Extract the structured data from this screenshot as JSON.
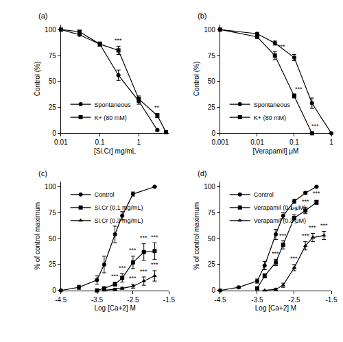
{
  "chart_data": [
    {
      "type": "scatter",
      "title": "(a)",
      "x_label": "[Si.Cr] mg/mL",
      "y_label": "Control (%)",
      "log": "x",
      "grid": false,
      "legend": "lower left",
      "xlim": [
        0.01,
        6
      ],
      "xticks": [
        0.01,
        0.1,
        1
      ],
      "ylim": [
        0,
        105
      ],
      "yticks": [
        0,
        25,
        50,
        75,
        100
      ],
      "series": [
        {
          "name": "Spontaneous",
          "color": "#000000",
          "marker": "circle",
          "line_style": "solid",
          "x": [
            0.01,
            0.03,
            0.1,
            0.3,
            1,
            3
          ],
          "values": [
            100,
            95,
            86,
            56,
            31,
            3
          ],
          "errors": [
            0,
            1,
            2,
            5,
            3,
            1
          ]
        },
        {
          "name": "K+ (80 mM)",
          "color": "#000000",
          "marker": "square",
          "line_style": "solid",
          "x": [
            0.01,
            0.03,
            0.1,
            0.3,
            1,
            3,
            5
          ],
          "values": [
            100,
            98,
            86,
            80,
            33,
            17,
            1
          ],
          "errors": [
            0,
            1,
            2,
            4,
            3,
            2,
            1
          ]
        }
      ],
      "annotations": [
        {
          "x": 0.3,
          "y": 85,
          "text": "***"
        },
        {
          "x": 3,
          "y": 20,
          "text": "**"
        }
      ]
    },
    {
      "type": "scatter",
      "title": "(b)",
      "x_label": "[Verapamil] μM",
      "y_label": "Control (%)",
      "log": "x",
      "grid": false,
      "legend": "lower left",
      "xlim": [
        0.001,
        1
      ],
      "xticks": [
        0.001,
        0.01,
        0.1,
        1
      ],
      "ylim": [
        0,
        105
      ],
      "yticks": [
        0,
        25,
        50,
        75,
        100
      ],
      "series": [
        {
          "name": "Spontaneous",
          "color": "#000000",
          "marker": "circle",
          "line_style": "solid",
          "x": [
            0.001,
            0.01,
            0.03,
            0.1,
            0.3,
            1
          ],
          "values": [
            100,
            96,
            87,
            73,
            29,
            0
          ],
          "errors": [
            0,
            1,
            2,
            3,
            5,
            0
          ]
        },
        {
          "name": "K+ (80 mM)",
          "color": "#000000",
          "marker": "square",
          "line_style": "solid",
          "x": [
            0.001,
            0.01,
            0.03,
            0.1,
            0.3
          ],
          "values": [
            100,
            93,
            75,
            36,
            0
          ],
          "errors": [
            0,
            1,
            4,
            2,
            0
          ]
        }
      ],
      "annotations": [
        {
          "x": 0.045,
          "y": 79,
          "text": "***"
        },
        {
          "x": 0.13,
          "y": 38,
          "text": "***"
        },
        {
          "x": 0.36,
          "y": 2,
          "text": "***"
        }
      ]
    },
    {
      "type": "scatter",
      "title": "(c)",
      "x_label": "Log [Ca+2] M",
      "y_label": "% of control maximum",
      "grid": false,
      "legend": "upper left",
      "xlim": [
        -4.5,
        -1.5
      ],
      "xticks": [
        -4.5,
        -3.5,
        -2.5,
        -1.5
      ],
      "ylim": [
        0,
        105
      ],
      "yticks": [
        0,
        25,
        50,
        75,
        100
      ],
      "series": [
        {
          "name": "Control",
          "color": "#000000",
          "marker": "circle",
          "line_style": "solid",
          "x": [
            -4.5,
            -4.0,
            -3.5,
            -3.3,
            -3.0,
            -2.8,
            -2.5,
            -1.9
          ],
          "values": [
            0,
            3,
            10,
            25,
            54,
            72,
            93,
            100
          ],
          "errors": [
            0,
            2,
            4,
            8,
            8,
            4,
            2,
            0
          ]
        },
        {
          "name": "Si.Cr (0.1 mg/mL)",
          "color": "#000000",
          "marker": "square",
          "line_style": "solid",
          "x": [
            -3.5,
            -3.3,
            -3.0,
            -2.8,
            -2.5,
            -2.2,
            -1.9
          ],
          "values": [
            0,
            2,
            6,
            12,
            27,
            37,
            38
          ],
          "errors": [
            0,
            1,
            2,
            4,
            6,
            8,
            8
          ]
        },
        {
          "name": "Si.Cr (0.3 mg/mL)",
          "color": "#000000",
          "marker": "triangle-up",
          "line_style": "solid",
          "x": [
            -3.3,
            -3.0,
            -2.8,
            -2.5,
            -2.2,
            -1.9
          ],
          "values": [
            0,
            1,
            2,
            4,
            9,
            14
          ],
          "errors": [
            0,
            1,
            1,
            2,
            4,
            5
          ]
        }
      ],
      "annotations": [
        {
          "x": -3.0,
          "y": 9,
          "text": "***"
        },
        {
          "x": -2.8,
          "y": 17,
          "text": "***"
        },
        {
          "x": -2.5,
          "y": 34,
          "text": "***"
        },
        {
          "x": -2.2,
          "y": 46,
          "text": "***"
        },
        {
          "x": -1.9,
          "y": 47,
          "text": "***"
        },
        {
          "x": -2.5,
          "y": 7,
          "text": "***"
        },
        {
          "x": -2.2,
          "y": 14,
          "text": "***"
        },
        {
          "x": -1.9,
          "y": 20,
          "text": "***"
        }
      ]
    },
    {
      "type": "scatter",
      "title": "(d)",
      "x_label": "Log [Ca+2] M",
      "y_label": "% of control maximum",
      "grid": false,
      "legend": "upper left",
      "xlim": [
        -4.5,
        -1.5
      ],
      "xticks": [
        -4.5,
        -3.5,
        -2.5,
        -1.5
      ],
      "ylim": [
        0,
        105
      ],
      "yticks": [
        0,
        25,
        50,
        75,
        100
      ],
      "series": [
        {
          "name": "Control",
          "color": "#000000",
          "marker": "circle",
          "line_style": "solid",
          "x": [
            -4.5,
            -4.0,
            -3.5,
            -3.3,
            -3.0,
            -2.8,
            -2.5,
            -2.2,
            -1.9
          ],
          "values": [
            0,
            3,
            9,
            24,
            54,
            72,
            86,
            94,
            100
          ],
          "errors": [
            0,
            1,
            2,
            4,
            5,
            3,
            2,
            1,
            0
          ]
        },
        {
          "name": "Verapamil (0.1 μM)",
          "color": "#000000",
          "marker": "square",
          "line_style": "solid",
          "x": [
            -3.5,
            -3.3,
            -3.0,
            -2.8,
            -2.5,
            -2.2,
            -1.9
          ],
          "values": [
            2,
            14,
            27,
            44,
            70,
            77,
            85
          ],
          "errors": [
            1,
            2,
            3,
            4,
            3,
            3,
            2
          ]
        },
        {
          "name": "Verapamil (0.3 μM)",
          "color": "#000000",
          "marker": "triangle-up",
          "line_style": "solid",
          "x": [
            -3.3,
            -3.0,
            -2.8,
            -2.5,
            -2.2,
            -2.0,
            -1.7
          ],
          "values": [
            0,
            1,
            5,
            22,
            43,
            51,
            53
          ],
          "errors": [
            0,
            1,
            2,
            3,
            4,
            4,
            4
          ]
        }
      ],
      "annotations": [
        {
          "x": -3.0,
          "y": 31,
          "text": "***"
        },
        {
          "x": -2.8,
          "y": 48,
          "text": "***"
        },
        {
          "x": -2.5,
          "y": 74,
          "text": "***"
        },
        {
          "x": -2.2,
          "y": 81,
          "text": "***"
        },
        {
          "x": -1.9,
          "y": 89,
          "text": "***"
        },
        {
          "x": -2.5,
          "y": 26,
          "text": "***"
        },
        {
          "x": -2.2,
          "y": 48,
          "text": "***"
        },
        {
          "x": -2.0,
          "y": 56,
          "text": "***"
        },
        {
          "x": -1.7,
          "y": 58,
          "text": "***"
        }
      ]
    }
  ]
}
